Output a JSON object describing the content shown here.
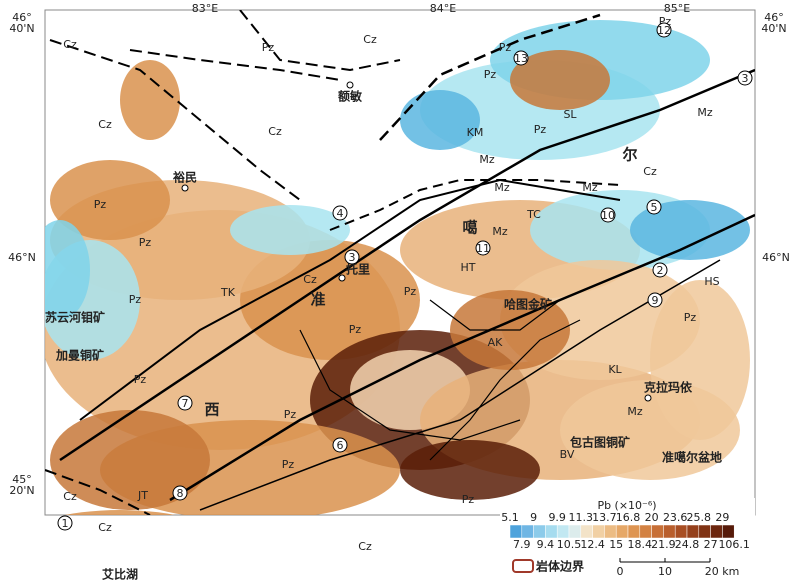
{
  "map": {
    "coords": {
      "lon": [
        "83°E",
        "84°E",
        "85°E"
      ],
      "lat_top": [
        "46°",
        "40'N"
      ],
      "lat_mid": "46°N",
      "lat_bot": [
        "45°",
        "20'N"
      ]
    },
    "units": [
      "Cz",
      "Pz",
      "Cz",
      "Cz",
      "Cz",
      "Pz",
      "Pz",
      "Pz",
      "KM",
      "SL",
      "Pz",
      "Mz",
      "Cz",
      "Pz",
      "Pz",
      "Mz",
      "Mz",
      "Mz",
      "TC",
      "Mz",
      "HT",
      "Cz",
      "TK",
      "Pz",
      "Pz",
      "Pz",
      "AK",
      "KL",
      "Pz",
      "Pz",
      "Pz",
      "Mz",
      "BV",
      "Pz",
      "Pz",
      "JT",
      "Cz",
      "Cz",
      "Cz",
      "HS"
    ],
    "places": [
      "额敏",
      "裕民",
      "托里",
      "准",
      "噶",
      "尔",
      "西",
      "克拉玛依",
      "准噶尔盆地",
      "艾比湖",
      "包古图铜矿",
      "哈图金矿",
      "苏云河钼矿",
      "加曼铜矿"
    ],
    "faults": [
      "1",
      "2",
      "3",
      "3",
      "4",
      "5",
      "6",
      "7",
      "8",
      "9",
      "10",
      "11",
      "12",
      "13"
    ],
    "legend": {
      "title": "Pb (×10⁻⁶)",
      "top": [
        5.1,
        9,
        9.9,
        11.3,
        13.7,
        16.8,
        20,
        23.6,
        25.8,
        29
      ],
      "bottom": [
        7.9,
        9.4,
        10.5,
        12.4,
        15,
        18.4,
        21.9,
        24.8,
        27,
        106.1
      ],
      "boundary": "岩体边界",
      "scale": [
        "0",
        "10",
        "20 km"
      ]
    }
  }
}
